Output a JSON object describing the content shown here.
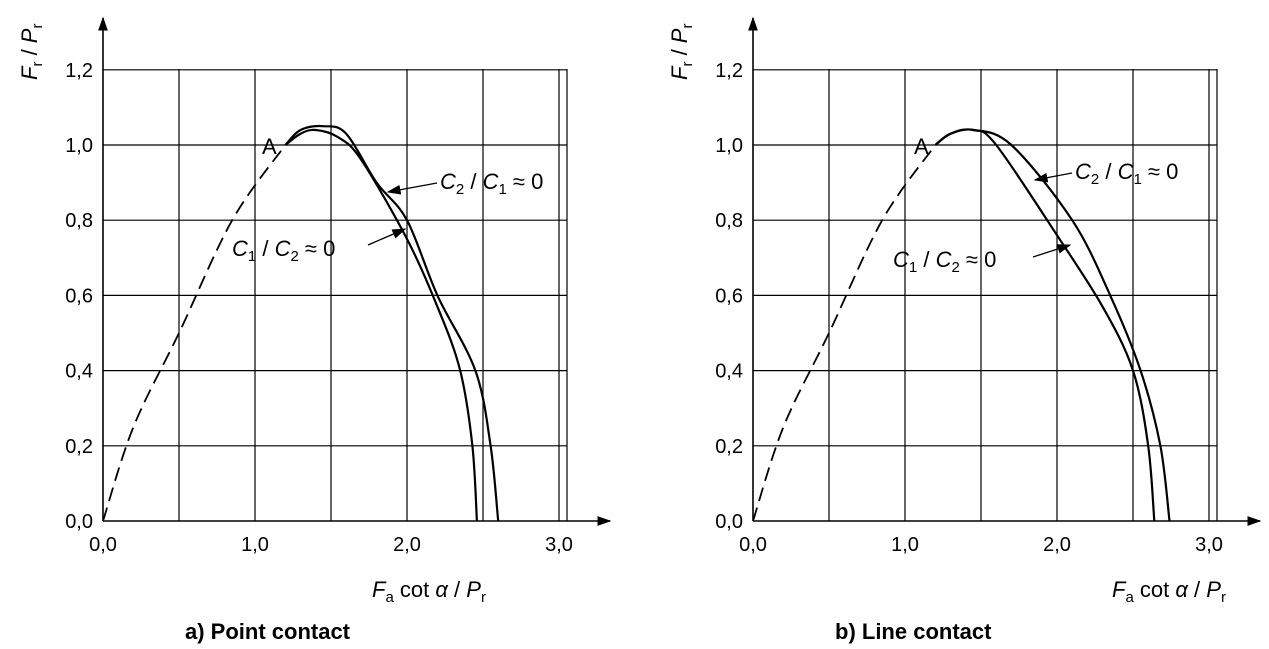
{
  "chart_data": [
    {
      "type": "line",
      "caption": "a)  Point contact",
      "xlabel": {
        "sym": "F",
        "sub": "a",
        "rest1": " cot ",
        "greek": "α",
        "rest2": " / ",
        "sym2": "P",
        "sub2": "r"
      },
      "ylabel": {
        "sym": "F",
        "sub": "r",
        "mid": " / ",
        "sym2": "P",
        "sub2": "r"
      },
      "xlim": [
        0,
        3.4
      ],
      "ylim": [
        0,
        1.3
      ],
      "grid": true,
      "x_ticks": [
        "0,0",
        "1,0",
        "2,0",
        "3,0"
      ],
      "y_ticks": [
        "0,0",
        "0,2",
        "0,4",
        "0,6",
        "0,8",
        "1,0",
        "1,2"
      ],
      "point_label": "A",
      "series": [
        {
          "style": "dashed",
          "points": [
            [
              0,
              0
            ],
            [
              0.2,
              0.25
            ],
            [
              0.5,
              0.5
            ],
            [
              0.85,
              0.8
            ],
            [
              1.2,
              1.0
            ]
          ]
        },
        {
          "style": "solid",
          "label": {
            "C1": "C",
            "s1": "2",
            "mid": " / ",
            "C2": "C",
            "s2": "1",
            "end": " ≈ 0"
          },
          "points": [
            [
              1.2,
              1.0
            ],
            [
              1.3,
              1.04
            ],
            [
              1.45,
              1.05
            ],
            [
              1.6,
              1.03
            ],
            [
              1.8,
              0.9
            ],
            [
              2.0,
              0.8
            ],
            [
              2.2,
              0.6
            ],
            [
              2.45,
              0.4
            ],
            [
              2.55,
              0.2
            ],
            [
              2.6,
              0.0
            ]
          ]
        },
        {
          "style": "solid",
          "label": {
            "C1": "C",
            "s1": "1",
            "mid": " / ",
            "C2": "C",
            "s2": "2",
            "end": " ≈ 0"
          },
          "points": [
            [
              1.2,
              1.0
            ],
            [
              1.3,
              1.03
            ],
            [
              1.4,
              1.04
            ],
            [
              1.55,
              1.02
            ],
            [
              1.7,
              0.96
            ],
            [
              2.0,
              0.75
            ],
            [
              2.2,
              0.57
            ],
            [
              2.35,
              0.4
            ],
            [
              2.43,
              0.2
            ],
            [
              2.46,
              0.0
            ]
          ]
        }
      ]
    },
    {
      "type": "line",
      "caption": "b)  Line contact",
      "xlabel": {
        "sym": "F",
        "sub": "a",
        "rest1": " cot ",
        "greek": "α",
        "rest2": " / ",
        "sym2": "P",
        "sub2": "r"
      },
      "ylabel": {
        "sym": "F",
        "sub": "r",
        "mid": " / ",
        "sym2": "P",
        "sub2": "r"
      },
      "xlim": [
        0,
        3.4
      ],
      "ylim": [
        0,
        1.3
      ],
      "grid": true,
      "x_ticks": [
        "0,0",
        "1,0",
        "2,0",
        "3,0"
      ],
      "y_ticks": [
        "0,0",
        "0,2",
        "0,4",
        "0,6",
        "0,8",
        "1,0",
        "1,2"
      ],
      "point_label": "A",
      "series": [
        {
          "style": "dashed",
          "points": [
            [
              0,
              0
            ],
            [
              0.2,
              0.25
            ],
            [
              0.5,
              0.5
            ],
            [
              0.85,
              0.8
            ],
            [
              1.2,
              1.0
            ]
          ]
        },
        {
          "style": "solid",
          "label": {
            "C1": "C",
            "s1": "2",
            "mid": " / ",
            "C2": "C",
            "s2": "1",
            "end": " ≈ 0"
          },
          "points": [
            [
              1.2,
              1.0
            ],
            [
              1.3,
              1.03
            ],
            [
              1.45,
              1.04
            ],
            [
              1.7,
              1.0
            ],
            [
              2.1,
              0.8
            ],
            [
              2.35,
              0.6
            ],
            [
              2.55,
              0.4
            ],
            [
              2.68,
              0.2
            ],
            [
              2.74,
              0.0
            ]
          ]
        },
        {
          "style": "solid",
          "label": {
            "C1": "C",
            "s1": "1",
            "mid": " / ",
            "C2": "C",
            "s2": "2",
            "end": " ≈ 0"
          },
          "points": [
            [
              1.2,
              1.0
            ],
            [
              1.3,
              1.03
            ],
            [
              1.45,
              1.04
            ],
            [
              1.6,
              1.0
            ],
            [
              2.0,
              0.76
            ],
            [
              2.3,
              0.57
            ],
            [
              2.5,
              0.4
            ],
            [
              2.6,
              0.2
            ],
            [
              2.64,
              0.0
            ]
          ]
        }
      ]
    }
  ]
}
